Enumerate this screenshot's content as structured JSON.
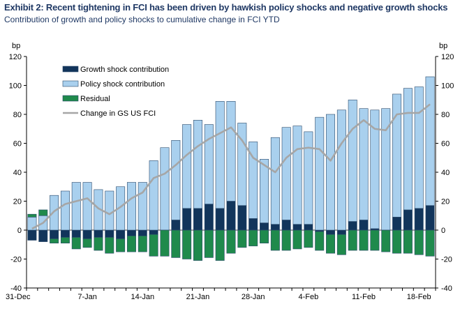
{
  "header": {
    "title": "Exhibit 2: Recent tightening in FCI has been driven by hawkish policy shocks and negative growth shocks",
    "subtitle": "Contribution of growth and policy shocks to cumulative change in FCI YTD"
  },
  "chart_data": {
    "type": "bar",
    "stacked": true,
    "ylabel_left": "bp",
    "ylabel_right": "bp",
    "ylim": [
      -40,
      120
    ],
    "yticks": [
      -40,
      -20,
      0,
      20,
      40,
      60,
      80,
      100,
      120
    ],
    "x_tick_labels": [
      "31-Dec",
      "7-Jan",
      "14-Jan",
      "21-Jan",
      "28-Jan",
      "4-Feb",
      "11-Feb",
      "18-Feb"
    ],
    "x_tick_positions": [
      0,
      5,
      10,
      15,
      20,
      25,
      30,
      35
    ],
    "legend": {
      "placement": "top-left"
    },
    "colors": {
      "growth": "#12355b",
      "policy": "#a9d0ee",
      "residual": "#1f8a4c",
      "fci_line": "#a6a6a6",
      "bar_edge": "#2b4a6b"
    },
    "series": [
      {
        "name": "Growth shock contribution",
        "kind": "bar",
        "values": [
          -7,
          -8,
          -6,
          -5,
          -5,
          -6,
          -5,
          -5,
          -6,
          -4,
          -4,
          -3,
          0,
          7,
          15,
          15,
          18,
          15,
          20,
          17,
          8,
          5,
          4,
          7,
          4,
          4,
          -1,
          -3,
          -3,
          6,
          7,
          1,
          0,
          9,
          14,
          15,
          17
        ]
      },
      {
        "name": "Policy shock contribution",
        "kind": "bar",
        "values": [
          9,
          10,
          24,
          27,
          33,
          33,
          28,
          27,
          30,
          33,
          33,
          48,
          57,
          55,
          58,
          61,
          55,
          74,
          69,
          57,
          53,
          44,
          60,
          64,
          68,
          64,
          78,
          80,
          83,
          84,
          77,
          82,
          84,
          85,
          84,
          84,
          89
        ]
      },
      {
        "name": "Residual",
        "kind": "bar",
        "values": [
          2,
          4,
          -3,
          -4,
          -8,
          -6,
          -9,
          -11,
          -9,
          -11,
          -11,
          -15,
          -18,
          -19,
          -20,
          -21,
          -19,
          -21,
          -16,
          -12,
          -11,
          -9,
          -14,
          -14,
          -13,
          -12,
          -13,
          -13,
          -14,
          -14,
          -14,
          -14,
          -15,
          -16,
          -16,
          -17,
          -18
        ]
      },
      {
        "name": "Change in GS US FCI",
        "kind": "line",
        "values": [
          1,
          5,
          13,
          18,
          20,
          22,
          15,
          11,
          16,
          22,
          26,
          36,
          39,
          45,
          52,
          58,
          63,
          67,
          71,
          62,
          50,
          45,
          40,
          50,
          56,
          57,
          56,
          48,
          60,
          70,
          76,
          70,
          69,
          80,
          81,
          81,
          87
        ]
      }
    ]
  }
}
